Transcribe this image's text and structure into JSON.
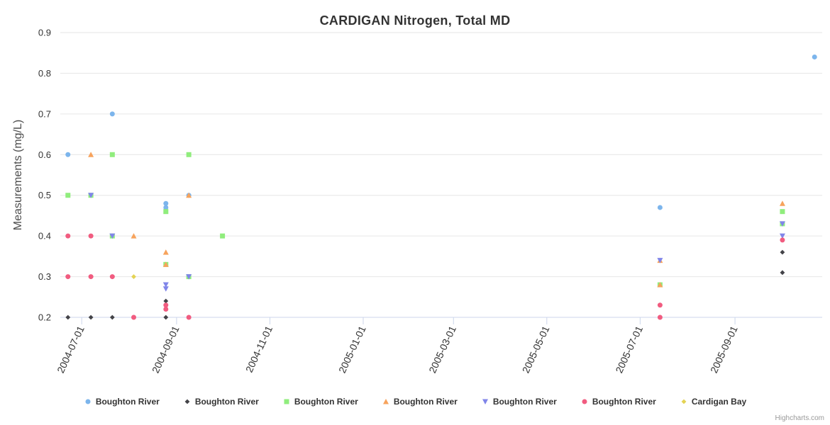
{
  "title": "CARDIGAN Nitrogen, Total MD",
  "credits": "Highcharts.com",
  "colors": {
    "grid_line": "#e6e6e6",
    "axis_line": "#ccd6eb",
    "title_text": "#333333",
    "tick_text": "#333333",
    "axis_title_text": "#4d4d4d",
    "legend_text": "#333333",
    "credits_text": "#999999"
  },
  "chart_data": {
    "type": "scatter",
    "title": "CARDIGAN Nitrogen, Total MD",
    "xlabel": "",
    "ylabel": "Measurements (mg/L)",
    "xlim": [
      "2004-06-17",
      "2005-10-28"
    ],
    "ylim": [
      0.2,
      0.9
    ],
    "x_ticks": [
      "2004-07-01",
      "2004-09-01",
      "2004-11-01",
      "2005-01-01",
      "2005-03-01",
      "2005-05-01",
      "2005-07-01",
      "2005-09-01"
    ],
    "y_tick_labels": [
      "0.2",
      "0.3",
      "0.4",
      "0.5",
      "0.6",
      "0.7",
      "0.8",
      "0.9"
    ],
    "grid": "horizontal-only",
    "legend_position": "bottom-center",
    "series": [
      {
        "name": "Boughton River",
        "color": "#7cb5ec",
        "marker": "circle",
        "points": [
          [
            "2004-06-22",
            0.6
          ],
          [
            "2004-07-21",
            0.7
          ],
          [
            "2004-08-25",
            0.48
          ],
          [
            "2004-08-25",
            0.47
          ],
          [
            "2004-09-09",
            0.5
          ],
          [
            "2005-07-14",
            0.47
          ],
          [
            "2005-10-23",
            0.84
          ]
        ]
      },
      {
        "name": "Boughton River",
        "color": "#434348",
        "marker": "diamond",
        "points": [
          [
            "2004-06-22",
            0.2
          ],
          [
            "2004-07-07",
            0.2
          ],
          [
            "2004-07-21",
            0.2
          ],
          [
            "2004-08-25",
            0.24
          ],
          [
            "2004-08-25",
            0.2
          ],
          [
            "2005-07-14",
            0.2
          ],
          [
            "2005-10-02",
            0.36
          ],
          [
            "2005-10-02",
            0.31
          ]
        ]
      },
      {
        "name": "Boughton River",
        "color": "#90ed7d",
        "marker": "square",
        "points": [
          [
            "2004-06-22",
            0.5
          ],
          [
            "2004-07-07",
            0.5
          ],
          [
            "2004-07-21",
            0.6
          ],
          [
            "2004-07-21",
            0.4
          ],
          [
            "2004-08-25",
            0.46
          ],
          [
            "2004-08-25",
            0.33
          ],
          [
            "2004-09-09",
            0.6
          ],
          [
            "2004-09-09",
            0.3
          ],
          [
            "2004-10-01",
            0.4
          ],
          [
            "2005-07-14",
            0.28
          ],
          [
            "2005-10-02",
            0.46
          ],
          [
            "2005-10-02",
            0.43
          ]
        ]
      },
      {
        "name": "Boughton River",
        "color": "#f7a35c",
        "marker": "triangle",
        "points": [
          [
            "2004-07-07",
            0.6
          ],
          [
            "2004-08-04",
            0.4
          ],
          [
            "2004-08-25",
            0.36
          ],
          [
            "2004-08-25",
            0.33
          ],
          [
            "2004-09-09",
            0.5
          ],
          [
            "2005-07-14",
            0.34
          ],
          [
            "2005-07-14",
            0.28
          ],
          [
            "2005-10-02",
            0.48
          ]
        ]
      },
      {
        "name": "Boughton River",
        "color": "#8085e9",
        "marker": "triangle-down",
        "points": [
          [
            "2004-07-07",
            0.5
          ],
          [
            "2004-07-21",
            0.4
          ],
          [
            "2004-08-25",
            0.28
          ],
          [
            "2004-08-25",
            0.27
          ],
          [
            "2004-09-09",
            0.3
          ],
          [
            "2005-07-14",
            0.34
          ],
          [
            "2005-10-02",
            0.43
          ],
          [
            "2005-10-02",
            0.4
          ]
        ]
      },
      {
        "name": "Boughton River",
        "color": "#f15c80",
        "marker": "circle",
        "points": [
          [
            "2004-06-22",
            0.4
          ],
          [
            "2004-06-22",
            0.3
          ],
          [
            "2004-07-07",
            0.4
          ],
          [
            "2004-07-07",
            0.3
          ],
          [
            "2004-07-21",
            0.3
          ],
          [
            "2004-08-04",
            0.2
          ],
          [
            "2004-08-25",
            0.23
          ],
          [
            "2004-08-25",
            0.22
          ],
          [
            "2004-09-09",
            0.2
          ],
          [
            "2005-07-14",
            0.23
          ],
          [
            "2005-07-14",
            0.2
          ],
          [
            "2005-10-02",
            0.39
          ]
        ]
      },
      {
        "name": "Cardigan Bay",
        "color": "#e4d354",
        "marker": "diamond",
        "points": [
          [
            "2004-08-04",
            0.3
          ]
        ]
      }
    ]
  }
}
